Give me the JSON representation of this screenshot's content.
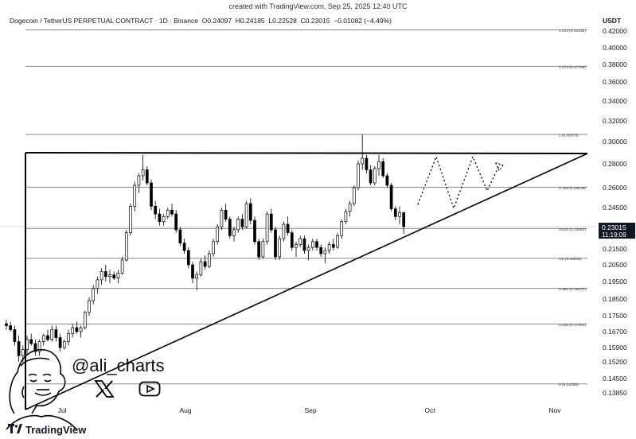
{
  "top_note": "created with TradingView.com, Sep 25, 2025 12:40 UTC",
  "header": {
    "symbol": "Dogecoin / TetherUS PERPETUAL CONTRACT · 1D · Binance",
    "open": "O0.24097",
    "high": "H0.24185",
    "low": "L0.22528",
    "close": "C0.23015",
    "change": "−0.01082 (−4.49%)"
  },
  "currency": "USDT",
  "brand": "TradingView",
  "watermark": "@ali_charts",
  "social_icons": [
    "x-logo-icon",
    "youtube-icon"
  ],
  "colors": {
    "candle": "#000000",
    "background": "#ffffff",
    "price_label": "#131722"
  },
  "chart_data": {
    "type": "candlestick",
    "y_axis_ticks": [
      "0.42000",
      "0.40000",
      "0.38000",
      "0.36000",
      "0.34000",
      "0.32000",
      "0.30000",
      "0.28000",
      "0.26000",
      "0.24500",
      "0.23015",
      "0.21500",
      "0.20500",
      "0.19500",
      "0.18500",
      "0.17500",
      "0.16700",
      "0.15900",
      "0.15200",
      "0.14500",
      "0.13850"
    ],
    "x_axis_ticks": [
      "Jul",
      "Aug",
      "Sep",
      "Oct",
      "Nov"
    ],
    "current_price": "0.23015",
    "countdown": "11:19:09",
    "fib_levels": [
      {
        "label": "1.414 (0.42132)",
        "value": 0.42132
      },
      {
        "label": "1.272 (0.37788)",
        "value": 0.37788
      },
      {
        "label": "1 (0.30679)",
        "value": 0.30679
      },
      {
        "label": "0.786 (0.26039)",
        "value": 0.26039
      },
      {
        "label": "0.618 (0.22884)",
        "value": 0.22884
      },
      {
        "label": "0.5 (0.20915)",
        "value": 0.20915
      },
      {
        "label": "0.382 (0.19107)",
        "value": 0.19107
      },
      {
        "label": "0.236 (0.17084)",
        "value": 0.17084
      },
      {
        "label": "0 (0.14258)",
        "value": 0.14258
      }
    ],
    "candles": [
      [
        0.171,
        0.173,
        0.168,
        0.17
      ],
      [
        0.17,
        0.172,
        0.167,
        0.168
      ],
      [
        0.168,
        0.17,
        0.16,
        0.162
      ],
      [
        0.162,
        0.165,
        0.152,
        0.155
      ],
      [
        0.155,
        0.16,
        0.152,
        0.158
      ],
      [
        0.158,
        0.165,
        0.156,
        0.163
      ],
      [
        0.163,
        0.166,
        0.16,
        0.161
      ],
      [
        0.161,
        0.163,
        0.155,
        0.157
      ],
      [
        0.157,
        0.163,
        0.155,
        0.162
      ],
      [
        0.162,
        0.166,
        0.16,
        0.165
      ],
      [
        0.165,
        0.168,
        0.162,
        0.163
      ],
      [
        0.163,
        0.17,
        0.162,
        0.168
      ],
      [
        0.168,
        0.17,
        0.162,
        0.164
      ],
      [
        0.164,
        0.166,
        0.157,
        0.159
      ],
      [
        0.159,
        0.163,
        0.158,
        0.162
      ],
      [
        0.162,
        0.168,
        0.16,
        0.166
      ],
      [
        0.166,
        0.171,
        0.164,
        0.169
      ],
      [
        0.169,
        0.172,
        0.166,
        0.167
      ],
      [
        0.167,
        0.17,
        0.164,
        0.169
      ],
      [
        0.169,
        0.178,
        0.168,
        0.177
      ],
      [
        0.177,
        0.186,
        0.175,
        0.184
      ],
      [
        0.184,
        0.193,
        0.182,
        0.191
      ],
      [
        0.191,
        0.198,
        0.188,
        0.196
      ],
      [
        0.196,
        0.203,
        0.193,
        0.201
      ],
      [
        0.201,
        0.205,
        0.195,
        0.198
      ],
      [
        0.198,
        0.202,
        0.194,
        0.199
      ],
      [
        0.199,
        0.201,
        0.196,
        0.197
      ],
      [
        0.197,
        0.202,
        0.194,
        0.2
      ],
      [
        0.2,
        0.21,
        0.199,
        0.208
      ],
      [
        0.208,
        0.228,
        0.207,
        0.226
      ],
      [
        0.226,
        0.248,
        0.224,
        0.246
      ],
      [
        0.246,
        0.265,
        0.242,
        0.262
      ],
      [
        0.262,
        0.272,
        0.256,
        0.27
      ],
      [
        0.27,
        0.288,
        0.266,
        0.275
      ],
      [
        0.275,
        0.278,
        0.262,
        0.264
      ],
      [
        0.264,
        0.267,
        0.243,
        0.246
      ],
      [
        0.246,
        0.25,
        0.236,
        0.24
      ],
      [
        0.24,
        0.244,
        0.231,
        0.234
      ],
      [
        0.234,
        0.24,
        0.231,
        0.238
      ],
      [
        0.238,
        0.245,
        0.236,
        0.243
      ],
      [
        0.243,
        0.248,
        0.238,
        0.24
      ],
      [
        0.24,
        0.243,
        0.226,
        0.228
      ],
      [
        0.228,
        0.23,
        0.217,
        0.219
      ],
      [
        0.219,
        0.222,
        0.212,
        0.214
      ],
      [
        0.214,
        0.216,
        0.203,
        0.205
      ],
      [
        0.205,
        0.207,
        0.194,
        0.197
      ],
      [
        0.197,
        0.201,
        0.19,
        0.199
      ],
      [
        0.199,
        0.209,
        0.198,
        0.207
      ],
      [
        0.207,
        0.211,
        0.202,
        0.204
      ],
      [
        0.204,
        0.214,
        0.203,
        0.212
      ],
      [
        0.212,
        0.222,
        0.21,
        0.22
      ],
      [
        0.22,
        0.232,
        0.218,
        0.23
      ],
      [
        0.23,
        0.245,
        0.228,
        0.243
      ],
      [
        0.243,
        0.248,
        0.234,
        0.236
      ],
      [
        0.236,
        0.238,
        0.222,
        0.224
      ],
      [
        0.224,
        0.23,
        0.22,
        0.228
      ],
      [
        0.228,
        0.238,
        0.226,
        0.236
      ],
      [
        0.236,
        0.24,
        0.228,
        0.23
      ],
      [
        0.23,
        0.25,
        0.229,
        0.248
      ],
      [
        0.248,
        0.252,
        0.232,
        0.235
      ],
      [
        0.235,
        0.238,
        0.218,
        0.22
      ],
      [
        0.22,
        0.222,
        0.208,
        0.21
      ],
      [
        0.21,
        0.222,
        0.209,
        0.22
      ],
      [
        0.22,
        0.242,
        0.218,
        0.24
      ],
      [
        0.24,
        0.244,
        0.226,
        0.228
      ],
      [
        0.228,
        0.23,
        0.208,
        0.21
      ],
      [
        0.21,
        0.224,
        0.208,
        0.222
      ],
      [
        0.222,
        0.234,
        0.22,
        0.232
      ],
      [
        0.232,
        0.238,
        0.224,
        0.226
      ],
      [
        0.226,
        0.228,
        0.214,
        0.216
      ],
      [
        0.216,
        0.22,
        0.21,
        0.218
      ],
      [
        0.218,
        0.224,
        0.216,
        0.222
      ],
      [
        0.222,
        0.224,
        0.212,
        0.214
      ],
      [
        0.214,
        0.218,
        0.208,
        0.216
      ],
      [
        0.216,
        0.222,
        0.214,
        0.22
      ],
      [
        0.22,
        0.222,
        0.214,
        0.216
      ],
      [
        0.216,
        0.218,
        0.21,
        0.212
      ],
      [
        0.212,
        0.216,
        0.206,
        0.214
      ],
      [
        0.214,
        0.22,
        0.212,
        0.218
      ],
      [
        0.218,
        0.222,
        0.214,
        0.216
      ],
      [
        0.216,
        0.226,
        0.215,
        0.224
      ],
      [
        0.224,
        0.236,
        0.222,
        0.234
      ],
      [
        0.234,
        0.244,
        0.232,
        0.242
      ],
      [
        0.242,
        0.25,
        0.238,
        0.248
      ],
      [
        0.248,
        0.262,
        0.246,
        0.26
      ],
      [
        0.26,
        0.283,
        0.258,
        0.28
      ],
      [
        0.28,
        0.307,
        0.275,
        0.285
      ],
      [
        0.285,
        0.288,
        0.272,
        0.275
      ],
      [
        0.275,
        0.279,
        0.262,
        0.264
      ],
      [
        0.264,
        0.278,
        0.262,
        0.276
      ],
      [
        0.276,
        0.288,
        0.27,
        0.282
      ],
      [
        0.282,
        0.285,
        0.268,
        0.27
      ],
      [
        0.27,
        0.272,
        0.26,
        0.262
      ],
      [
        0.262,
        0.264,
        0.242,
        0.244
      ],
      [
        0.244,
        0.246,
        0.235,
        0.238
      ],
      [
        0.238,
        0.246,
        0.232,
        0.241
      ],
      [
        0.241,
        0.2419,
        0.2253,
        0.2302
      ]
    ]
  }
}
